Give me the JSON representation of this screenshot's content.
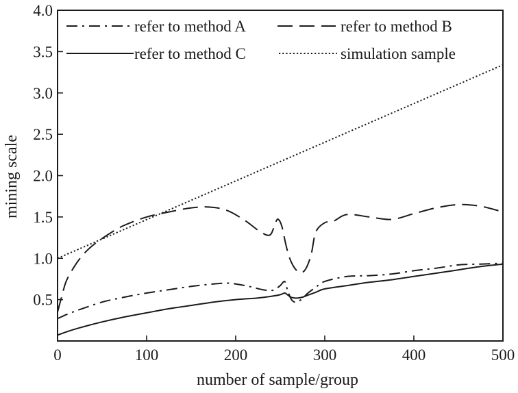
{
  "chart_data": {
    "type": "line",
    "title": "",
    "xlabel": "number of sample/group",
    "ylabel": "mining scale",
    "xlim": [
      0,
      500
    ],
    "ylim": [
      0,
      4.0
    ],
    "xticks": [
      0,
      100,
      200,
      300,
      400,
      500
    ],
    "xtick_labels": [
      "0",
      "100",
      "200",
      "300",
      "400",
      "500"
    ],
    "yticks": [
      0.5,
      1.0,
      1.5,
      2.0,
      2.5,
      3.0,
      3.5,
      4.0
    ],
    "ytick_labels": [
      "0.5",
      "1.0",
      "1.5",
      "2.0",
      "2.5",
      "3.0",
      "3.5",
      "4.0"
    ],
    "grid": false,
    "legend_position": "top",
    "series": [
      {
        "name": "refer to method A",
        "line_style": "dash-dot",
        "color": "#1a1a1a",
        "x": [
          0,
          10,
          25,
          50,
          75,
          100,
          125,
          150,
          175,
          190,
          200,
          215,
          230,
          240,
          245,
          250,
          255,
          258,
          262,
          266,
          270,
          275,
          280,
          290,
          300,
          325,
          350,
          375,
          400,
          425,
          450,
          475,
          500
        ],
        "y": [
          0.27,
          0.32,
          0.38,
          0.47,
          0.53,
          0.58,
          0.62,
          0.66,
          0.69,
          0.7,
          0.69,
          0.66,
          0.62,
          0.61,
          0.63,
          0.67,
          0.72,
          0.62,
          0.51,
          0.47,
          0.48,
          0.51,
          0.57,
          0.65,
          0.72,
          0.78,
          0.79,
          0.81,
          0.85,
          0.88,
          0.92,
          0.93,
          0.94
        ]
      },
      {
        "name": "refer to method B",
        "line_style": "dash",
        "color": "#1a1a1a",
        "x": [
          0,
          5,
          10,
          20,
          30,
          40,
          50,
          60,
          75,
          100,
          125,
          150,
          170,
          190,
          210,
          225,
          235,
          240,
          245,
          248,
          252,
          256,
          260,
          265,
          270,
          275,
          280,
          285,
          290,
          300,
          310,
          325,
          350,
          375,
          400,
          425,
          450,
          475,
          500
        ],
        "y": [
          0.35,
          0.55,
          0.73,
          0.92,
          1.06,
          1.16,
          1.24,
          1.31,
          1.4,
          1.5,
          1.56,
          1.61,
          1.62,
          1.58,
          1.46,
          1.34,
          1.28,
          1.3,
          1.44,
          1.47,
          1.38,
          1.18,
          1.02,
          0.9,
          0.84,
          0.83,
          0.9,
          1.06,
          1.32,
          1.43,
          1.45,
          1.53,
          1.5,
          1.47,
          1.54,
          1.61,
          1.65,
          1.63,
          1.56
        ]
      },
      {
        "name": "refer to method C",
        "line_style": "solid",
        "color": "#1a1a1a",
        "x": [
          0,
          10,
          25,
          50,
          75,
          100,
          125,
          150,
          175,
          200,
          225,
          240,
          250,
          255,
          258,
          262,
          266,
          270,
          275,
          280,
          290,
          300,
          325,
          350,
          375,
          400,
          425,
          450,
          475,
          500
        ],
        "y": [
          0.07,
          0.11,
          0.16,
          0.23,
          0.29,
          0.34,
          0.39,
          0.43,
          0.47,
          0.5,
          0.52,
          0.54,
          0.56,
          0.58,
          0.56,
          0.53,
          0.52,
          0.52,
          0.53,
          0.55,
          0.59,
          0.63,
          0.67,
          0.71,
          0.74,
          0.78,
          0.82,
          0.86,
          0.9,
          0.93
        ]
      },
      {
        "name": "simulation sample",
        "line_style": "dot",
        "color": "#1a1a1a",
        "x": [
          0,
          500
        ],
        "y": [
          1.0,
          3.34
        ]
      }
    ]
  }
}
